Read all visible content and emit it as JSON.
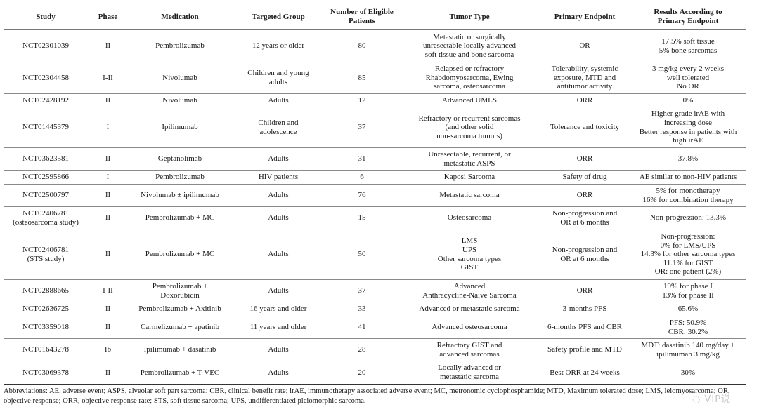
{
  "table": {
    "headers": [
      "Study",
      "Phase",
      "Medication",
      "Targeted Group",
      "Number of Eligible\nPatients",
      "Tumor Type",
      "Primary Endpoint",
      "Results According to\nPrimary Endpoint"
    ],
    "rows": [
      [
        "NCT02301039",
        "II",
        "Pembrolizumab",
        "12 years or older",
        "80",
        "Metastatic or surgically\nunresectable locally advanced\nsoft tissue and bone sarcoma",
        "OR",
        "17.5% soft tissue\n5% bone sarcomas"
      ],
      [
        "NCT02304458",
        "I-II",
        "Nivolumab",
        "Children and young\nadults",
        "85",
        "Relapsed or refractory\nRhabdomyosarcoma, Ewing\nsarcoma, osteosarcoma",
        "Tolerability, systemic\nexposure, MTD and\nantitumor activity",
        "3 mg/kg every 2 weeks\nwell tolerated\nNo OR"
      ],
      [
        "NCT02428192",
        "II",
        "Nivolumab",
        "Adults",
        "12",
        "Advanced UMLS",
        "ORR",
        "0%"
      ],
      [
        "NCT01445379",
        "I",
        "Ipilimumab",
        "Children and\nadolescence",
        "37",
        "Refractory or recurrent sarcomas\n(and other solid\nnon-sarcoma tumors)",
        "Tolerance and toxicity",
        "Higher grade irAE with\nincreasing dose\nBetter response in patients with\nhigh irAE"
      ],
      [
        "NCT03623581",
        "II",
        "Geptanolimab",
        "Adults",
        "31",
        "Unresectable, recurrent, or\nmetastatic ASPS",
        "ORR",
        "37.8%"
      ],
      [
        "NCT02595866",
        "I",
        "Pembrolizumab",
        "HIV patients",
        "6",
        "Kaposi Sarcoma",
        "Safety of drug",
        "AE similar to non-HIV patients"
      ],
      [
        "NCT02500797",
        "II",
        "Nivolumab ± ipilimumab",
        "Adults",
        "76",
        "Metastatic sarcoma",
        "ORR",
        "5% for monotherapy\n16% for combination therapy"
      ],
      [
        "NCT02406781\n(osteosarcoma study)",
        "II",
        "Pembrolizumab + MC",
        "Adults",
        "15",
        "Osteosarcoma",
        "Non-progression and\nOR at 6 months",
        "Non-progression: 13.3%"
      ],
      [
        "NCT02406781\n(STS study)",
        "II",
        "Pembrolizumab + MC",
        "Adults",
        "50",
        "LMS\nUPS\nOther sarcoma types\nGIST",
        "Non-progression and\nOR at 6 months",
        "Non-progression:\n0% for LMS/UPS\n14.3% for other sarcoma types\n11.1% for GIST\nOR: one patient (2%)"
      ],
      [
        "NCT02888665",
        "I-II",
        "Pembrolizumab +\nDoxorubicin",
        "Adults",
        "37",
        "Advanced\nAnthracycline-Naive Sarcoma",
        "ORR",
        "19% for phase I\n13% for phase II"
      ],
      [
        "NCT02636725",
        "II",
        "Pembrolizumab + Axitinib",
        "16 years and older",
        "33",
        "Advanced or metastatic sarcoma",
        "3-months PFS",
        "65.6%"
      ],
      [
        "NCT03359018",
        "II",
        "Carmelizumab + apatinib",
        "11 years and older",
        "41",
        "Advanced osteosarcoma",
        "6-months PFS and CBR",
        "PFS: 50.9%\nCBR: 30.2%"
      ],
      [
        "NCT01643278",
        "Ib",
        "Ipilimumab + dasatinib",
        "Adults",
        "28",
        "Refractory GIST and\nadvanced sarcomas",
        "Safety profile and MTD",
        "MDT: dasatinib 140 mg/day +\nipilimumab 3 mg/kg"
      ],
      [
        "NCT03069378",
        "II",
        "Pembrolizumab + T-VEC",
        "Adults",
        "20",
        "Locally advanced or\nmetastatic sarcoma",
        "Best ORR at 24 weeks",
        "30%"
      ]
    ]
  },
  "footnote": "Abbreviations: AE, adverse event; ASPS, alveolar soft part sarcoma; CBR, clinical benefit rate; irAE, immunotherapy associated adverse event; MC, metronomic cyclophosphamide; MTD, Maximum tolerated dose; LMS, leiomyosarcoma; OR, objective response; ORR, objective response rate; STS, soft tissue sarcoma; UPS, undifferentiated pleiomorphic sarcoma.",
  "watermark": "VIP说"
}
